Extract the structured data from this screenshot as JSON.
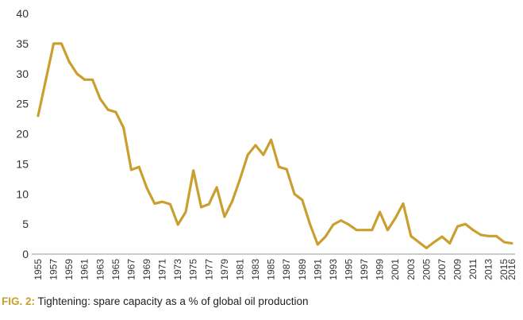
{
  "caption": {
    "fig_label": "FIG. 2:",
    "text": " Tightening: spare capacity as a % of global oil production"
  },
  "colors": {
    "line": "#c9a030",
    "axis": "#555555",
    "grid": "#d0d0d0",
    "text": "#333333",
    "caption_accent": "#c8a02a"
  },
  "chart_data": {
    "type": "line",
    "title": "",
    "xlabel": "",
    "ylabel": "",
    "ylim": [
      0,
      40
    ],
    "yticks": [
      0,
      5,
      10,
      15,
      20,
      25,
      30,
      35,
      40
    ],
    "grid": false,
    "x": [
      1955,
      1956,
      1957,
      1958,
      1959,
      1960,
      1961,
      1962,
      1963,
      1964,
      1965,
      1966,
      1967,
      1968,
      1969,
      1970,
      1971,
      1972,
      1973,
      1974,
      1975,
      1976,
      1977,
      1978,
      1979,
      1980,
      1981,
      1982,
      1983,
      1984,
      1985,
      1986,
      1987,
      1988,
      1989,
      1990,
      1991,
      1992,
      1993,
      1994,
      1995,
      1996,
      1997,
      1998,
      1999,
      2000,
      2001,
      2002,
      2003,
      2004,
      2005,
      2006,
      2007,
      2008,
      2009,
      2010,
      2011,
      2012,
      2013,
      2014,
      2015,
      2016
    ],
    "xtick_labels": [
      "1955",
      "1957",
      "1959",
      "1961",
      "1963",
      "1965",
      "1967",
      "1969",
      "1971",
      "1973",
      "1975",
      "1977",
      "1979",
      "1981",
      "1983",
      "1985",
      "1987",
      "1989",
      "1991",
      "1993",
      "1995",
      "1997",
      "1999",
      "2001",
      "2003",
      "2005",
      "2007",
      "2009",
      "2011",
      "2013",
      "2015",
      "2016"
    ],
    "series": [
      {
        "name": "",
        "values": [
          23,
          29,
          35,
          35,
          32,
          30,
          29,
          29,
          25.8,
          24,
          23.6,
          21,
          14,
          14.5,
          11,
          8.4,
          8.7,
          8.3,
          4.9,
          7,
          13.9,
          7.8,
          8.3,
          11.1,
          6.2,
          8.8,
          12.5,
          16.5,
          18.1,
          16.5,
          19,
          14.5,
          14.1,
          10,
          9,
          5,
          1.6,
          2.9,
          4.9,
          5.6,
          4.9,
          4,
          4,
          4,
          7,
          4,
          6,
          8.4,
          3,
          2,
          1,
          2,
          2.9,
          1.8,
          4.6,
          5,
          4,
          3.2,
          3,
          3,
          2,
          1.8
        ]
      }
    ]
  }
}
